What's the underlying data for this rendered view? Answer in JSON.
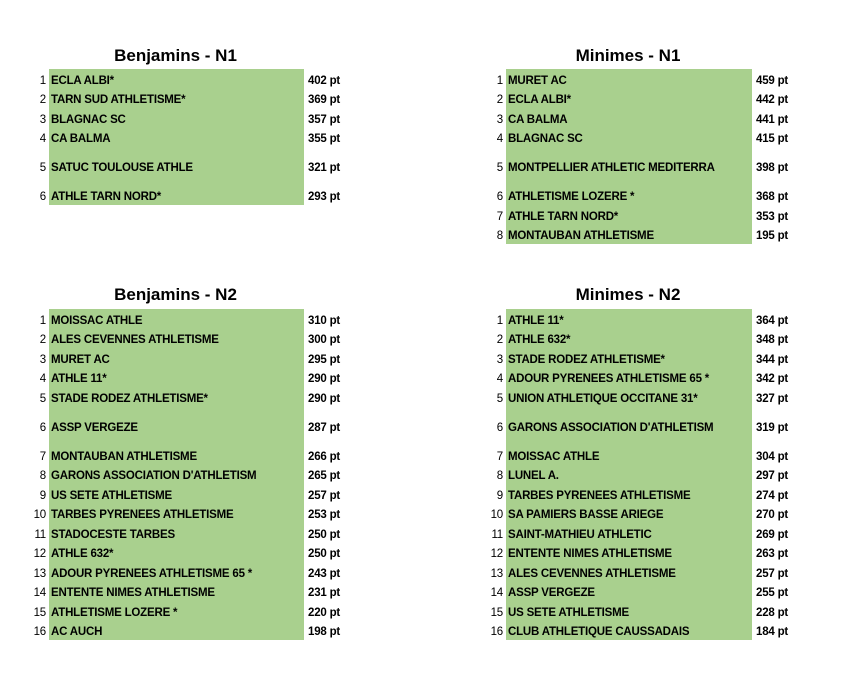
{
  "tables": [
    {
      "title": "Benjamins - N1",
      "rows": [
        {
          "rank": "1",
          "club": "ECLA ALBI*",
          "points": "402 pt"
        },
        {
          "rank": "2",
          "club": "TARN SUD ATHLETISME*",
          "points": "369 pt"
        },
        {
          "rank": "3",
          "club": "BLAGNAC SC",
          "points": "357 pt"
        },
        {
          "rank": "4",
          "club": "CA BALMA",
          "points": "355 pt"
        },
        {
          "rank": "5",
          "club": "SATUC TOULOUSE ATHLE",
          "points": "321 pt"
        },
        {
          "rank": "6",
          "club": "ATHLE TARN NORD*",
          "points": "293 pt"
        }
      ]
    },
    {
      "title": "Minimes - N1",
      "rows": [
        {
          "rank": "1",
          "club": "MURET AC",
          "points": "459 pt"
        },
        {
          "rank": "2",
          "club": "ECLA ALBI*",
          "points": "442 pt"
        },
        {
          "rank": "3",
          "club": "CA BALMA",
          "points": "441 pt"
        },
        {
          "rank": "4",
          "club": "BLAGNAC SC",
          "points": "415 pt"
        },
        {
          "rank": "5",
          "club": "MONTPELLIER ATHLETIC MEDITERRA",
          "points": "398 pt"
        },
        {
          "rank": "6",
          "club": "ATHLETISME LOZERE *",
          "points": "368 pt"
        },
        {
          "rank": "7",
          "club": "ATHLE TARN NORD*",
          "points": "353 pt"
        },
        {
          "rank": "8",
          "club": "MONTAUBAN ATHLETISME",
          "points": "195 pt"
        }
      ]
    },
    {
      "title": "Benjamins - N2",
      "rows": [
        {
          "rank": "1",
          "club": "MOISSAC ATHLE",
          "points": "310 pt"
        },
        {
          "rank": "2",
          "club": "ALES CEVENNES ATHLETISME",
          "points": "300 pt"
        },
        {
          "rank": "3",
          "club": "MURET AC",
          "points": "295 pt"
        },
        {
          "rank": "4",
          "club": "ATHLE 11*",
          "points": "290 pt"
        },
        {
          "rank": "5",
          "club": "STADE RODEZ ATHLETISME*",
          "points": "290 pt"
        },
        {
          "rank": "6",
          "club": "ASSP VERGEZE",
          "points": "287 pt"
        },
        {
          "rank": "7",
          "club": "MONTAUBAN ATHLETISME",
          "points": "266 pt"
        },
        {
          "rank": "8",
          "club": "GARONS ASSOCIATION D'ATHLETISM",
          "points": "265 pt"
        },
        {
          "rank": "9",
          "club": "US SETE ATHLETISME",
          "points": "257 pt"
        },
        {
          "rank": "10",
          "club": "TARBES PYRENEES ATHLETISME",
          "points": "253 pt"
        },
        {
          "rank": "11",
          "club": "STADOCESTE TARBES",
          "points": "250 pt"
        },
        {
          "rank": "12",
          "club": "ATHLE 632*",
          "points": "250 pt"
        },
        {
          "rank": "13",
          "club": "ADOUR PYRENEES ATHLETISME 65 *",
          "points": "243 pt"
        },
        {
          "rank": "14",
          "club": "ENTENTE NIMES ATHLETISME",
          "points": "231 pt"
        },
        {
          "rank": "15",
          "club": "ATHLETISME LOZERE *",
          "points": "220 pt"
        },
        {
          "rank": "16",
          "club": "AC AUCH",
          "points": "198 pt"
        }
      ]
    },
    {
      "title": "Minimes - N2",
      "rows": [
        {
          "rank": "1",
          "club": "ATHLE 11*",
          "points": "364 pt"
        },
        {
          "rank": "2",
          "club": "ATHLE 632*",
          "points": "348 pt"
        },
        {
          "rank": "3",
          "club": "STADE RODEZ ATHLETISME*",
          "points": "344 pt"
        },
        {
          "rank": "4",
          "club": "ADOUR PYRENEES ATHLETISME 65 *",
          "points": "342 pt"
        },
        {
          "rank": "5",
          "club": "UNION ATHLETIQUE OCCITANE 31*",
          "points": "327 pt"
        },
        {
          "rank": "6",
          "club": "GARONS ASSOCIATION D'ATHLETISM",
          "points": "319 pt"
        },
        {
          "rank": "7",
          "club": "MOISSAC ATHLE",
          "points": "304 pt"
        },
        {
          "rank": "8",
          "club": "LUNEL A.",
          "points": "297 pt"
        },
        {
          "rank": "9",
          "club": "TARBES PYRENEES ATHLETISME",
          "points": "274 pt"
        },
        {
          "rank": "10",
          "club": "SA PAMIERS BASSE ARIEGE",
          "points": "270 pt"
        },
        {
          "rank": "11",
          "club": "SAINT-MATHIEU ATHLETIC",
          "points": "269 pt"
        },
        {
          "rank": "12",
          "club": "ENTENTE NIMES ATHLETISME",
          "points": "263 pt"
        },
        {
          "rank": "13",
          "club": "ALES CEVENNES ATHLETISME",
          "points": "257 pt"
        },
        {
          "rank": "14",
          "club": "ASSP VERGEZE",
          "points": "255 pt"
        },
        {
          "rank": "15",
          "club": "US SETE ATHLETISME",
          "points": "228 pt"
        },
        {
          "rank": "16",
          "club": "CLUB ATHLETIQUE CAUSSADAIS",
          "points": "184 pt"
        }
      ]
    }
  ]
}
